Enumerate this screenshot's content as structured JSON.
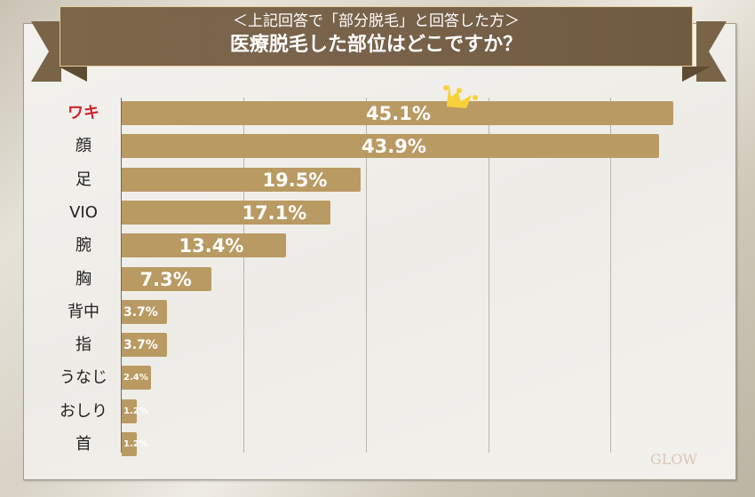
{
  "header": {
    "subtitle": "＜上記回答で「部分脱毛」と回答した方＞",
    "title": "医療脱毛した部位はどこですか？"
  },
  "logo": "GLOW",
  "colors": {
    "bar": "#b99a62",
    "banner": "#7a6447",
    "top_label": "#d0242b",
    "crown": "#f7d13a"
  },
  "chart_data": {
    "type": "bar",
    "orientation": "horizontal",
    "title": "医療脱毛した部位はどこですか？",
    "subtitle": "＜上記回答で「部分脱毛」と回答した方＞",
    "categories": [
      "ワキ",
      "顔",
      "足",
      "VIO",
      "腕",
      "胸",
      "背中",
      "指",
      "うなじ",
      "おしり",
      "首"
    ],
    "values": [
      45.1,
      43.9,
      19.5,
      17.1,
      13.4,
      7.3,
      3.7,
      3.7,
      2.4,
      1.2,
      1.2
    ],
    "value_labels": [
      "45.1%",
      "43.9%",
      "19.5%",
      "17.1%",
      "13.4%",
      "7.3%",
      "3.7%",
      "3.7%",
      "2.4%",
      "1.2%",
      "1.2%"
    ],
    "unit": "%",
    "xlabel": "",
    "ylabel": "",
    "xlim": [
      0,
      50
    ],
    "gridlines": [
      10,
      20,
      30,
      40
    ],
    "grid": true,
    "legend": null,
    "annotations": [
      "crown icon on top item (ワキ)"
    ]
  }
}
